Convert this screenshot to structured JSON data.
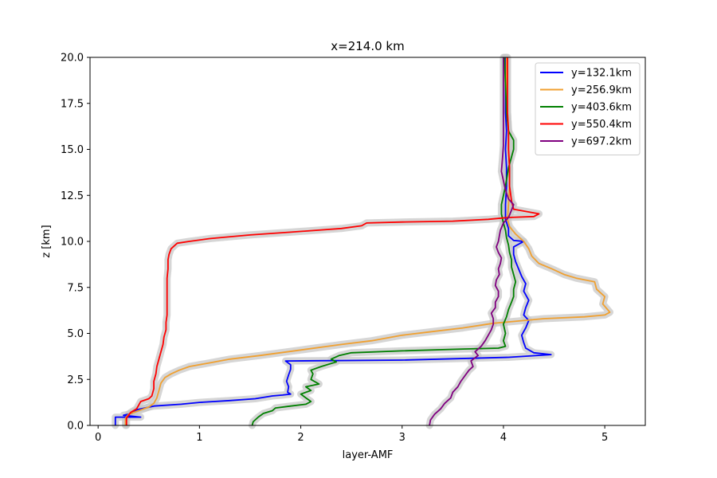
{
  "chart_data": {
    "type": "line",
    "title": "x=214.0 km",
    "xlabel": "layer-AMF",
    "ylabel": "z [km]",
    "xlim": [
      -0.08,
      5.4
    ],
    "ylim": [
      0,
      20
    ],
    "xticks": [
      "0",
      "1",
      "2",
      "3",
      "4",
      "5"
    ],
    "yticks": [
      "0.0",
      "2.5",
      "5.0",
      "7.5",
      "10.0",
      "12.5",
      "15.0",
      "17.5",
      "20.0"
    ],
    "grid": false,
    "legend_position": "top-right",
    "uncertainty_band_color": "#c8c8c8",
    "series": [
      {
        "name": "y=132.1km",
        "color": "#0000ff",
        "points": [
          [
            0.17,
            0
          ],
          [
            0.17,
            0.45
          ],
          [
            0.42,
            0.45
          ],
          [
            0.25,
            0.55
          ],
          [
            0.33,
            0.65
          ],
          [
            0.38,
            0.85
          ],
          [
            0.55,
            1.05
          ],
          [
            0.82,
            1.15
          ],
          [
            1.0,
            1.25
          ],
          [
            1.3,
            1.35
          ],
          [
            1.55,
            1.45
          ],
          [
            1.72,
            1.6
          ],
          [
            1.82,
            1.65
          ],
          [
            1.9,
            1.7
          ],
          [
            1.87,
            1.8
          ],
          [
            1.88,
            2.1
          ],
          [
            1.86,
            2.4
          ],
          [
            1.88,
            2.75
          ],
          [
            1.9,
            3.05
          ],
          [
            1.9,
            3.3
          ],
          [
            1.85,
            3.5
          ],
          [
            3.0,
            3.55
          ],
          [
            4.05,
            3.7
          ],
          [
            4.47,
            3.85
          ],
          [
            4.3,
            3.95
          ],
          [
            4.22,
            4.2
          ],
          [
            4.2,
            4.5
          ],
          [
            4.18,
            4.9
          ],
          [
            4.22,
            5.3
          ],
          [
            4.25,
            5.7
          ],
          [
            4.2,
            6.0
          ],
          [
            4.22,
            6.4
          ],
          [
            4.25,
            6.8
          ],
          [
            4.2,
            7.3
          ],
          [
            4.22,
            7.7
          ],
          [
            4.18,
            8.1
          ],
          [
            4.15,
            8.5
          ],
          [
            4.12,
            8.9
          ],
          [
            4.1,
            9.3
          ],
          [
            4.1,
            9.7
          ],
          [
            4.2,
            10.0
          ],
          [
            4.1,
            10.05
          ],
          [
            4.05,
            10.3
          ],
          [
            4.05,
            10.7
          ],
          [
            4.02,
            11.2
          ],
          [
            4.02,
            12.0
          ],
          [
            4.03,
            13.0
          ],
          [
            4.03,
            14.0
          ],
          [
            4.02,
            15.0
          ],
          [
            4.03,
            16.0
          ],
          [
            4.02,
            17.0
          ],
          [
            4.02,
            18.5
          ],
          [
            4.02,
            20.0
          ]
        ]
      },
      {
        "name": "y=256.9km",
        "color": "#f0a030",
        "points": [
          [
            0.27,
            0
          ],
          [
            0.27,
            0.4
          ],
          [
            0.3,
            0.6
          ],
          [
            0.4,
            0.8
          ],
          [
            0.5,
            1.0
          ],
          [
            0.55,
            1.2
          ],
          [
            0.58,
            1.5
          ],
          [
            0.6,
            1.9
          ],
          [
            0.62,
            2.3
          ],
          [
            0.66,
            2.6
          ],
          [
            0.72,
            2.8
          ],
          [
            0.8,
            3.0
          ],
          [
            0.9,
            3.2
          ],
          [
            1.1,
            3.4
          ],
          [
            1.3,
            3.6
          ],
          [
            1.6,
            3.8
          ],
          [
            2.0,
            4.1
          ],
          [
            2.4,
            4.4
          ],
          [
            2.7,
            4.6
          ],
          [
            3.0,
            4.9
          ],
          [
            3.3,
            5.1
          ],
          [
            3.6,
            5.3
          ],
          [
            3.9,
            5.55
          ],
          [
            4.4,
            5.8
          ],
          [
            4.8,
            5.9
          ],
          [
            5.0,
            6.0
          ],
          [
            5.05,
            6.15
          ],
          [
            4.98,
            6.6
          ],
          [
            5.0,
            7.0
          ],
          [
            4.92,
            7.4
          ],
          [
            4.9,
            7.8
          ],
          [
            4.72,
            8.0
          ],
          [
            4.6,
            8.2
          ],
          [
            4.48,
            8.5
          ],
          [
            4.35,
            8.8
          ],
          [
            4.28,
            9.2
          ],
          [
            4.25,
            9.6
          ],
          [
            4.2,
            10.0
          ],
          [
            4.12,
            10.4
          ],
          [
            4.06,
            10.8
          ],
          [
            4.04,
            11.2
          ],
          [
            4.05,
            12.0
          ],
          [
            4.06,
            13.0
          ],
          [
            4.06,
            14.0
          ],
          [
            4.05,
            15.0
          ],
          [
            4.05,
            16.0
          ],
          [
            4.04,
            17.0
          ],
          [
            4.03,
            18.5
          ],
          [
            4.03,
            20.0
          ]
        ]
      },
      {
        "name": "y=403.6km",
        "color": "#008000",
        "points": [
          [
            1.52,
            0
          ],
          [
            1.53,
            0.2
          ],
          [
            1.58,
            0.45
          ],
          [
            1.63,
            0.65
          ],
          [
            1.72,
            0.8
          ],
          [
            1.75,
            0.95
          ],
          [
            1.9,
            1.05
          ],
          [
            2.05,
            1.15
          ],
          [
            2.1,
            1.3
          ],
          [
            2.05,
            1.5
          ],
          [
            2.0,
            1.7
          ],
          [
            2.1,
            1.9
          ],
          [
            2.05,
            2.1
          ],
          [
            2.18,
            2.25
          ],
          [
            2.1,
            2.5
          ],
          [
            2.12,
            2.8
          ],
          [
            2.1,
            3.0
          ],
          [
            2.2,
            3.2
          ],
          [
            2.35,
            3.45
          ],
          [
            2.3,
            3.6
          ],
          [
            2.38,
            3.8
          ],
          [
            2.5,
            3.95
          ],
          [
            3.0,
            4.05
          ],
          [
            3.6,
            4.15
          ],
          [
            3.95,
            4.2
          ],
          [
            4.02,
            4.3
          ],
          [
            4.0,
            4.6
          ],
          [
            4.02,
            5.0
          ],
          [
            4.0,
            5.5
          ],
          [
            4.03,
            5.9
          ],
          [
            4.05,
            6.3
          ],
          [
            4.08,
            6.7
          ],
          [
            4.1,
            7.0
          ],
          [
            4.1,
            7.4
          ],
          [
            4.12,
            7.8
          ],
          [
            4.1,
            8.2
          ],
          [
            4.08,
            8.6
          ],
          [
            4.08,
            9.0
          ],
          [
            4.06,
            9.4
          ],
          [
            4.05,
            9.8
          ],
          [
            4.03,
            10.2
          ],
          [
            4.02,
            10.6
          ],
          [
            4.0,
            11.0
          ],
          [
            3.98,
            11.5
          ],
          [
            3.98,
            12.0
          ],
          [
            4.02,
            13.0
          ],
          [
            4.05,
            14.0
          ],
          [
            4.1,
            15.0
          ],
          [
            4.1,
            15.5
          ],
          [
            4.05,
            16.0
          ],
          [
            4.03,
            17.0
          ],
          [
            4.02,
            18.5
          ],
          [
            4.01,
            20.0
          ]
        ]
      },
      {
        "name": "y=550.4km",
        "color": "#ff0000",
        "points": [
          [
            0.28,
            0
          ],
          [
            0.28,
            0.4
          ],
          [
            0.32,
            0.7
          ],
          [
            0.38,
            0.9
          ],
          [
            0.4,
            1.1
          ],
          [
            0.42,
            1.3
          ],
          [
            0.5,
            1.45
          ],
          [
            0.53,
            1.6
          ],
          [
            0.55,
            2.0
          ],
          [
            0.55,
            2.4
          ],
          [
            0.57,
            2.8
          ],
          [
            0.58,
            3.2
          ],
          [
            0.6,
            3.6
          ],
          [
            0.62,
            4.0
          ],
          [
            0.64,
            4.4
          ],
          [
            0.65,
            4.8
          ],
          [
            0.67,
            5.2
          ],
          [
            0.67,
            5.6
          ],
          [
            0.68,
            6.0
          ],
          [
            0.68,
            6.5
          ],
          [
            0.68,
            7.0
          ],
          [
            0.68,
            7.5
          ],
          [
            0.68,
            8.0
          ],
          [
            0.69,
            8.5
          ],
          [
            0.69,
            9.0
          ],
          [
            0.7,
            9.3
          ],
          [
            0.72,
            9.6
          ],
          [
            0.78,
            9.9
          ],
          [
            0.9,
            10.0
          ],
          [
            1.1,
            10.15
          ],
          [
            1.5,
            10.35
          ],
          [
            1.9,
            10.5
          ],
          [
            2.4,
            10.7
          ],
          [
            2.6,
            10.85
          ],
          [
            2.65,
            11.0
          ],
          [
            3.0,
            11.05
          ],
          [
            3.5,
            11.1
          ],
          [
            3.85,
            11.2
          ],
          [
            4.05,
            11.3
          ],
          [
            4.3,
            11.35
          ],
          [
            4.35,
            11.5
          ],
          [
            4.1,
            11.75
          ],
          [
            4.08,
            12.2
          ],
          [
            4.06,
            13.0
          ],
          [
            4.06,
            14.0
          ],
          [
            4.05,
            15.0
          ],
          [
            4.05,
            16.0
          ],
          [
            4.04,
            17.0
          ],
          [
            4.04,
            18.5
          ],
          [
            4.04,
            20.0
          ]
        ]
      },
      {
        "name": "y=697.2km",
        "color": "#800080",
        "points": [
          [
            3.27,
            0
          ],
          [
            3.28,
            0.3
          ],
          [
            3.32,
            0.6
          ],
          [
            3.38,
            0.9
          ],
          [
            3.42,
            1.2
          ],
          [
            3.48,
            1.5
          ],
          [
            3.5,
            1.8
          ],
          [
            3.55,
            2.1
          ],
          [
            3.58,
            2.4
          ],
          [
            3.62,
            2.7
          ],
          [
            3.66,
            3.0
          ],
          [
            3.7,
            3.2
          ],
          [
            3.68,
            3.5
          ],
          [
            3.75,
            3.8
          ],
          [
            3.72,
            4.0
          ],
          [
            3.78,
            4.3
          ],
          [
            3.82,
            4.6
          ],
          [
            3.85,
            4.9
          ],
          [
            3.88,
            5.2
          ],
          [
            3.9,
            5.5
          ],
          [
            3.9,
            5.8
          ],
          [
            3.88,
            6.1
          ],
          [
            3.92,
            6.4
          ],
          [
            3.92,
            6.7
          ],
          [
            3.95,
            7.0
          ],
          [
            3.95,
            7.3
          ],
          [
            3.92,
            7.6
          ],
          [
            3.93,
            7.9
          ],
          [
            3.96,
            8.2
          ],
          [
            3.95,
            8.5
          ],
          [
            3.97,
            8.8
          ],
          [
            3.98,
            9.1
          ],
          [
            3.95,
            9.4
          ],
          [
            3.93,
            9.7
          ],
          [
            3.95,
            10.0
          ],
          [
            3.96,
            10.3
          ],
          [
            3.97,
            10.6
          ],
          [
            4.0,
            11.0
          ],
          [
            4.05,
            11.3
          ],
          [
            4.08,
            11.7
          ],
          [
            4.1,
            12.0
          ],
          [
            4.05,
            12.3
          ],
          [
            4.02,
            12.8
          ],
          [
            4.0,
            13.3
          ],
          [
            3.98,
            13.8
          ],
          [
            3.99,
            14.5
          ],
          [
            4.0,
            15.2
          ],
          [
            4.0,
            16.0
          ],
          [
            4.0,
            17.0
          ],
          [
            4.0,
            18.5
          ],
          [
            4.0,
            20.0
          ]
        ]
      }
    ]
  }
}
